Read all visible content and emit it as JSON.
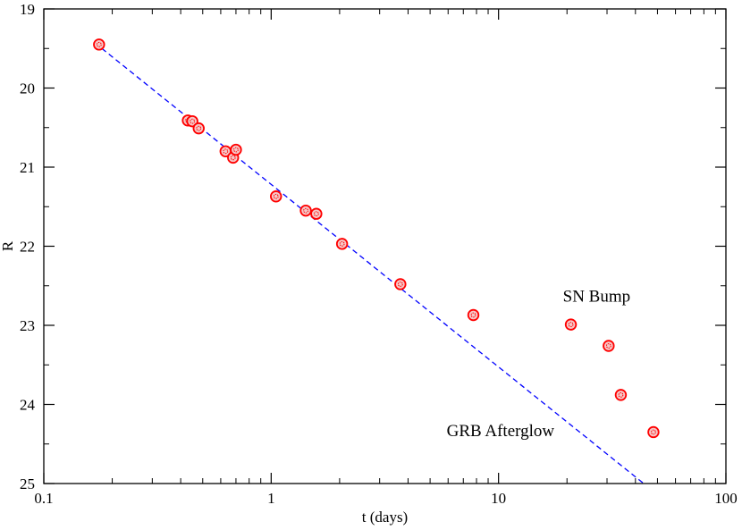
{
  "chart_data": {
    "type": "scatter",
    "title": "",
    "xlabel": "t (days)",
    "ylabel": "R",
    "x_scale": "log",
    "xlim": [
      0.1,
      100
    ],
    "ylim": [
      19,
      25
    ],
    "y_inverted": true,
    "grid": false,
    "x_ticks": [
      {
        "value": 0.1,
        "label": "0.1"
      },
      {
        "value": 1,
        "label": "1"
      },
      {
        "value": 10,
        "label": "10"
      },
      {
        "value": 100,
        "label": "100"
      }
    ],
    "y_ticks": [
      {
        "value": 19,
        "label": "19"
      },
      {
        "value": 20,
        "label": "20"
      },
      {
        "value": 21,
        "label": "21"
      },
      {
        "value": 22,
        "label": "22"
      },
      {
        "value": 23,
        "label": "23"
      },
      {
        "value": 24,
        "label": "24"
      },
      {
        "value": 25,
        "label": "25"
      }
    ],
    "series": [
      {
        "type": "scatter",
        "color": "#ff0000",
        "points": [
          {
            "x": 0.175,
            "y": 19.45
          },
          {
            "x": 0.43,
            "y": 20.41
          },
          {
            "x": 0.45,
            "y": 20.42
          },
          {
            "x": 0.48,
            "y": 20.51
          },
          {
            "x": 0.63,
            "y": 20.8
          },
          {
            "x": 0.68,
            "y": 20.88
          },
          {
            "x": 0.7,
            "y": 20.78
          },
          {
            "x": 1.05,
            "y": 21.37
          },
          {
            "x": 1.42,
            "y": 21.55
          },
          {
            "x": 1.58,
            "y": 21.59
          },
          {
            "x": 2.05,
            "y": 21.97
          },
          {
            "x": 3.7,
            "y": 22.48
          },
          {
            "x": 7.75,
            "y": 22.87
          },
          {
            "x": 20.8,
            "y": 22.99
          },
          {
            "x": 30.5,
            "y": 23.26
          },
          {
            "x": 34.5,
            "y": 23.88
          },
          {
            "x": 48.0,
            "y": 24.35
          }
        ]
      },
      {
        "type": "line",
        "style": "dashed",
        "color": "#0000ff",
        "points": [
          {
            "x": 0.18,
            "y": 19.5
          },
          {
            "x": 43.5,
            "y": 25.0
          }
        ]
      }
    ],
    "annotations": [
      {
        "text": "SN Bump",
        "x": 27,
        "y": 22.7
      },
      {
        "text": "GRB Afterglow",
        "x": 10.2,
        "y": 24.4
      }
    ]
  }
}
